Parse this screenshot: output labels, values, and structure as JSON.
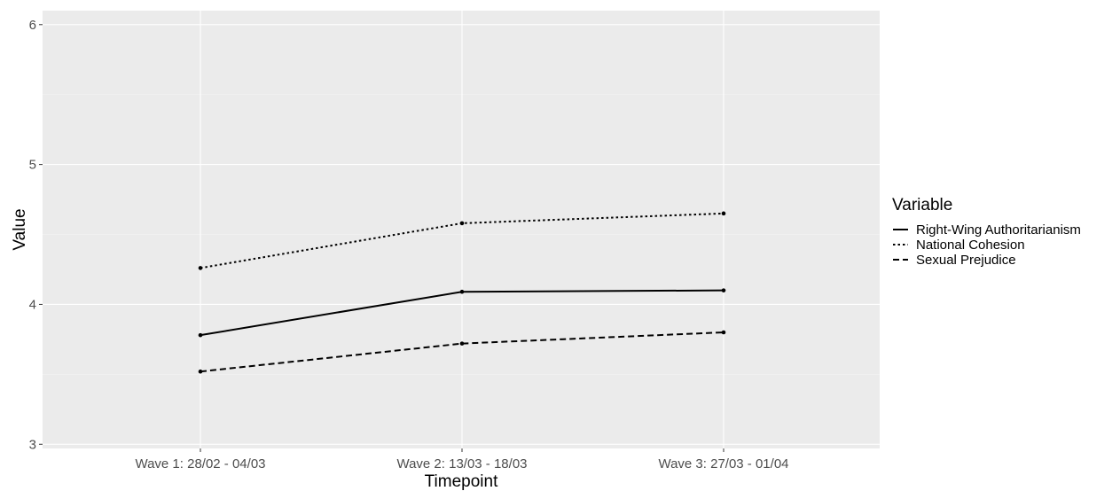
{
  "chart_data": {
    "type": "line",
    "categories": [
      "Wave 1: 28/02 - 04/03",
      "Wave 2: 13/03 - 18/03",
      "Wave 3: 27/03 - 01/04"
    ],
    "series": [
      {
        "name": "Right-Wing Authoritarianism",
        "values": [
          3.78,
          4.09,
          4.1
        ],
        "line_style": "solid"
      },
      {
        "name": "National Cohesion",
        "values": [
          4.26,
          4.58,
          4.65
        ],
        "line_style": "dotted"
      },
      {
        "name": "Sexual Prejudice",
        "values": [
          3.52,
          3.72,
          3.8
        ],
        "line_style": "dashed"
      }
    ],
    "xlabel": "Timepoint",
    "ylabel": "Value",
    "ylim": [
      2.97,
      6.1
    ],
    "yticks": [
      3,
      4,
      5,
      6
    ],
    "legend_title": "Variable",
    "legend_position": "right",
    "grid": true,
    "colors": {
      "panel_background": "#ebebeb",
      "grid_major": "#ffffff",
      "grid_minor": "#f4f4f4",
      "series_line": "#000000"
    }
  }
}
